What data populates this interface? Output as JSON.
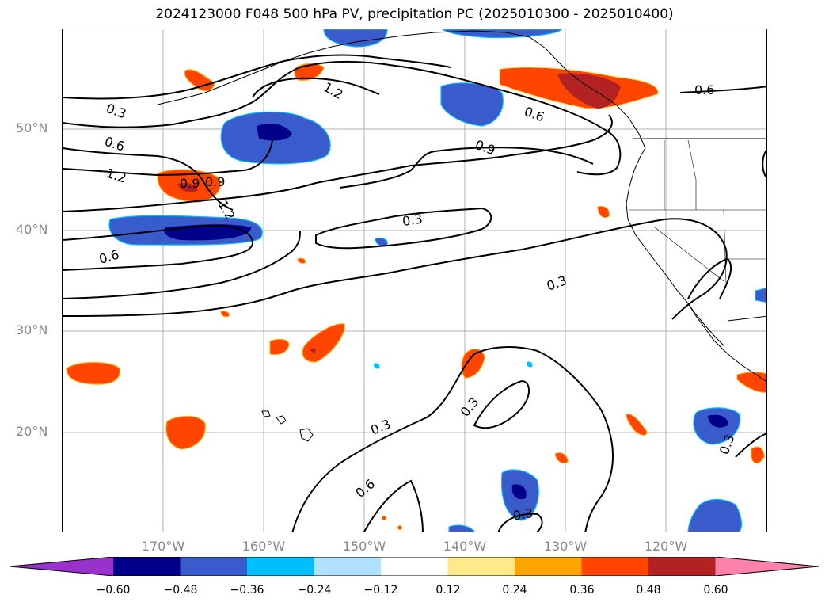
{
  "title": "2024123000 F048 500 hPa PV, precipitation PC (2025010300 - 2025010400)",
  "lat_labels": [
    "50°N",
    "40°N",
    "30°N",
    "20°N"
  ],
  "lon_labels": [
    "170°W",
    "160°W",
    "150°W",
    "140°W",
    "130°W",
    "120°W"
  ],
  "contour_labels": [
    "0.3",
    "0.6",
    "1.2",
    "0.6",
    "0.9",
    "1.2",
    "0.9",
    "1.2",
    "0.3",
    "0.3",
    "0.3",
    "0.3",
    "0.6",
    "0.3",
    "0.6",
    "0.6",
    "0.9",
    "0.3"
  ],
  "colorbar": {
    "tick_labels": [
      "−0.60",
      "−0.48",
      "−0.36",
      "−0.24",
      "−0.12",
      "0.12",
      "0.24",
      "0.36",
      "0.48",
      "0.60"
    ],
    "colors": [
      "#9932cc",
      "#00008b",
      "#3a5bcc",
      "#00bfff",
      "#b0e2ff",
      "#ffffff",
      "#ffe98a",
      "#ffa500",
      "#ff4500",
      "#b22222",
      "#ff82ab"
    ]
  }
}
